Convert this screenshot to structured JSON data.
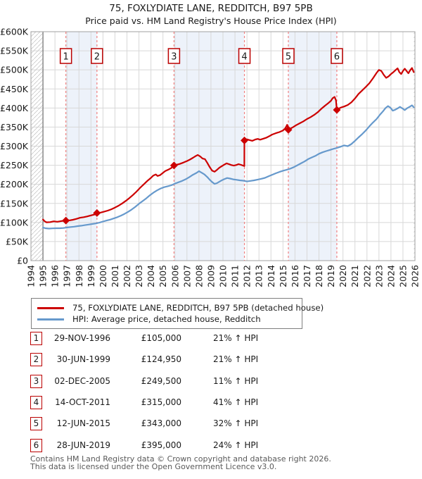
{
  "title": "75, FOXLYDIATE LANE, REDDITCH, B97 5PB",
  "subtitle": "Price paid vs. HM Land Registry's House Price Index (HPI)",
  "colors": {
    "property_line": "#cc0000",
    "hpi_line": "#6699cc",
    "sale_dashed_line": "#f08080",
    "marker_box_border": "#bb0000",
    "ownership_band": "#edf2fa",
    "gridline": "#d8d8d8",
    "plot_border": "#a0a0a0",
    "data_start_line": "#555555",
    "hatch": "#c8c8c8",
    "text": "#1a1a1a",
    "footer_text": "#595959"
  },
  "chart_data": {
    "type": "line",
    "title": "75, FOXLYDIATE LANE, REDDITCH, B97 5PB",
    "xlabel": "",
    "ylabel": "",
    "x_range": [
      1994,
      2026
    ],
    "y_range_thousands": [
      0,
      600
    ],
    "grid": true,
    "x_ticks": [
      1994,
      1995,
      1996,
      1997,
      1998,
      1999,
      2000,
      2001,
      2002,
      2003,
      2004,
      2005,
      2006,
      2007,
      2008,
      2009,
      2010,
      2011,
      2012,
      2013,
      2014,
      2015,
      2016,
      2017,
      2018,
      2019,
      2020,
      2021,
      2022,
      2023,
      2024,
      2025,
      2026
    ],
    "y_ticks_thousands": [
      0,
      50,
      100,
      150,
      200,
      250,
      300,
      350,
      400,
      450,
      500,
      550,
      600
    ],
    "y_tick_labels": [
      "£0",
      "£50K",
      "£100K",
      "£150K",
      "£200K",
      "£250K",
      "£300K",
      "£350K",
      "£400K",
      "£450K",
      "£500K",
      "£550K",
      "£600K"
    ],
    "ownership_bands": [
      [
        1996.91,
        1999.5
      ],
      [
        2005.92,
        2011.79
      ],
      [
        2015.45,
        2019.49
      ]
    ],
    "no_data_hatch": [
      [
        1994,
        1995
      ],
      [
        2025.9,
        2026
      ]
    ],
    "series": [
      {
        "name": "75, FOXLYDIATE LANE, REDDITCH, B97 5PB (detached house)",
        "color": "#cc0000",
        "points": [
          [
            1995.0,
            108
          ],
          [
            1995.15,
            103
          ],
          [
            1995.3,
            100.5
          ],
          [
            1995.6,
            101
          ],
          [
            1995.9,
            103
          ],
          [
            1996.2,
            102
          ],
          [
            1996.5,
            103.5
          ],
          [
            1996.91,
            105
          ],
          [
            1997.2,
            105.5
          ],
          [
            1997.5,
            107
          ],
          [
            1997.8,
            109.5
          ],
          [
            1998.1,
            112.5
          ],
          [
            1998.4,
            114
          ],
          [
            1998.7,
            116
          ],
          [
            1999.0,
            118.5
          ],
          [
            1999.3,
            121
          ],
          [
            1999.5,
            124.95
          ],
          [
            1999.8,
            126
          ],
          [
            2000.1,
            128.5
          ],
          [
            2000.4,
            131
          ],
          [
            2000.7,
            134.5
          ],
          [
            2001.0,
            139
          ],
          [
            2001.3,
            144
          ],
          [
            2001.6,
            150
          ],
          [
            2001.9,
            156.5
          ],
          [
            2002.2,
            164
          ],
          [
            2002.5,
            172
          ],
          [
            2002.8,
            181
          ],
          [
            2003.1,
            191
          ],
          [
            2003.4,
            200
          ],
          [
            2003.7,
            209
          ],
          [
            2004.0,
            217
          ],
          [
            2004.2,
            223
          ],
          [
            2004.4,
            226
          ],
          [
            2004.55,
            222
          ],
          [
            2004.75,
            224
          ],
          [
            2005.0,
            230
          ],
          [
            2005.2,
            235
          ],
          [
            2005.45,
            238.5
          ],
          [
            2005.7,
            243
          ],
          [
            2005.92,
            249.5
          ],
          [
            2006.1,
            251
          ],
          [
            2006.4,
            253.5
          ],
          [
            2006.7,
            257
          ],
          [
            2007.0,
            261
          ],
          [
            2007.25,
            265
          ],
          [
            2007.5,
            269.5
          ],
          [
            2007.75,
            274.5
          ],
          [
            2007.9,
            277
          ],
          [
            2008.1,
            273
          ],
          [
            2008.3,
            267.5
          ],
          [
            2008.5,
            266
          ],
          [
            2008.7,
            256
          ],
          [
            2008.9,
            245
          ],
          [
            2009.1,
            236
          ],
          [
            2009.3,
            233
          ],
          [
            2009.5,
            238
          ],
          [
            2009.7,
            243.5
          ],
          [
            2009.9,
            247.5
          ],
          [
            2010.1,
            251.5
          ],
          [
            2010.3,
            255
          ],
          [
            2010.5,
            253
          ],
          [
            2010.7,
            250.5
          ],
          [
            2010.9,
            249
          ],
          [
            2011.1,
            250.5
          ],
          [
            2011.3,
            253
          ],
          [
            2011.5,
            251
          ],
          [
            2011.78,
            248
          ],
          [
            2011.79,
            315
          ],
          [
            2012.0,
            318
          ],
          [
            2012.2,
            316
          ],
          [
            2012.45,
            314
          ],
          [
            2012.7,
            317.5
          ],
          [
            2012.9,
            319
          ],
          [
            2013.1,
            317
          ],
          [
            2013.35,
            319.5
          ],
          [
            2013.6,
            322
          ],
          [
            2013.85,
            326
          ],
          [
            2014.1,
            330.5
          ],
          [
            2014.4,
            334
          ],
          [
            2014.7,
            337
          ],
          [
            2015.0,
            341
          ],
          [
            2015.2,
            347
          ],
          [
            2015.35,
            356
          ],
          [
            2015.45,
            343
          ],
          [
            2015.65,
            346.5
          ],
          [
            2015.85,
            350
          ],
          [
            2016.1,
            355
          ],
          [
            2016.4,
            360
          ],
          [
            2016.7,
            365
          ],
          [
            2017.0,
            371
          ],
          [
            2017.3,
            376
          ],
          [
            2017.6,
            382
          ],
          [
            2017.9,
            389
          ],
          [
            2018.2,
            398
          ],
          [
            2018.5,
            406
          ],
          [
            2018.75,
            412
          ],
          [
            2019.0,
            419
          ],
          [
            2019.15,
            426
          ],
          [
            2019.3,
            429
          ],
          [
            2019.42,
            420
          ],
          [
            2019.49,
            395
          ],
          [
            2019.65,
            398.5
          ],
          [
            2019.85,
            401.5
          ],
          [
            2020.1,
            404
          ],
          [
            2020.4,
            408
          ],
          [
            2020.7,
            415
          ],
          [
            2021.0,
            425
          ],
          [
            2021.3,
            437
          ],
          [
            2021.6,
            446
          ],
          [
            2021.9,
            455
          ],
          [
            2022.2,
            465
          ],
          [
            2022.5,
            478
          ],
          [
            2022.8,
            492
          ],
          [
            2023.0,
            500
          ],
          [
            2023.2,
            497
          ],
          [
            2023.4,
            487
          ],
          [
            2023.6,
            479
          ],
          [
            2023.8,
            483
          ],
          [
            2024.0,
            489
          ],
          [
            2024.2,
            494
          ],
          [
            2024.4,
            500
          ],
          [
            2024.55,
            504
          ],
          [
            2024.7,
            494
          ],
          [
            2024.85,
            489
          ],
          [
            2025.0,
            497
          ],
          [
            2025.15,
            503
          ],
          [
            2025.3,
            497
          ],
          [
            2025.45,
            491
          ],
          [
            2025.6,
            499
          ],
          [
            2025.75,
            505
          ],
          [
            2025.9,
            494
          ]
        ]
      },
      {
        "name": "HPI: Average price, detached house, Redditch",
        "color": "#6699cc",
        "points": [
          [
            1995.0,
            87
          ],
          [
            1995.2,
            85
          ],
          [
            1995.5,
            84
          ],
          [
            1995.8,
            84.5
          ],
          [
            1996.1,
            85
          ],
          [
            1996.4,
            85
          ],
          [
            1996.7,
            85.5
          ],
          [
            1997.0,
            87
          ],
          [
            1997.3,
            88
          ],
          [
            1997.6,
            89
          ],
          [
            1997.9,
            90.5
          ],
          [
            1998.2,
            91.5
          ],
          [
            1998.5,
            93
          ],
          [
            1998.8,
            94.5
          ],
          [
            1999.1,
            96
          ],
          [
            1999.4,
            97.5
          ],
          [
            1999.7,
            99.5
          ],
          [
            2000.0,
            102.5
          ],
          [
            2000.3,
            105
          ],
          [
            2000.6,
            107.5
          ],
          [
            2000.9,
            110.5
          ],
          [
            2001.2,
            114
          ],
          [
            2001.5,
            118
          ],
          [
            2001.8,
            122.5
          ],
          [
            2002.1,
            128
          ],
          [
            2002.4,
            134
          ],
          [
            2002.7,
            141
          ],
          [
            2003.0,
            149
          ],
          [
            2003.3,
            156
          ],
          [
            2003.6,
            163
          ],
          [
            2003.9,
            171
          ],
          [
            2004.2,
            178
          ],
          [
            2004.5,
            184
          ],
          [
            2004.8,
            189
          ],
          [
            2005.1,
            192.5
          ],
          [
            2005.4,
            195
          ],
          [
            2005.7,
            197.5
          ],
          [
            2006.0,
            202
          ],
          [
            2006.3,
            205.5
          ],
          [
            2006.6,
            209
          ],
          [
            2006.9,
            213.5
          ],
          [
            2007.2,
            219
          ],
          [
            2007.5,
            225
          ],
          [
            2007.8,
            230
          ],
          [
            2008.0,
            234.5
          ],
          [
            2008.2,
            231
          ],
          [
            2008.45,
            226
          ],
          [
            2008.7,
            219
          ],
          [
            2008.9,
            212
          ],
          [
            2009.1,
            206
          ],
          [
            2009.3,
            201
          ],
          [
            2009.5,
            203
          ],
          [
            2009.7,
            207
          ],
          [
            2009.9,
            210.5
          ],
          [
            2010.1,
            213.5
          ],
          [
            2010.35,
            216.5
          ],
          [
            2010.6,
            215
          ],
          [
            2010.85,
            213
          ],
          [
            2011.1,
            212
          ],
          [
            2011.4,
            210.5
          ],
          [
            2011.7,
            209.5
          ],
          [
            2012.0,
            207.5
          ],
          [
            2012.3,
            209
          ],
          [
            2012.6,
            210.5
          ],
          [
            2012.9,
            212.5
          ],
          [
            2013.2,
            214.5
          ],
          [
            2013.5,
            217
          ],
          [
            2013.8,
            221
          ],
          [
            2014.1,
            225
          ],
          [
            2014.4,
            229
          ],
          [
            2014.7,
            232.5
          ],
          [
            2015.0,
            235.5
          ],
          [
            2015.3,
            238
          ],
          [
            2015.6,
            241
          ],
          [
            2015.9,
            245
          ],
          [
            2016.2,
            250
          ],
          [
            2016.5,
            255
          ],
          [
            2016.8,
            260
          ],
          [
            2017.1,
            266
          ],
          [
            2017.4,
            270.5
          ],
          [
            2017.7,
            274.5
          ],
          [
            2018.0,
            280
          ],
          [
            2018.3,
            284
          ],
          [
            2018.6,
            287
          ],
          [
            2018.9,
            290
          ],
          [
            2019.2,
            293
          ],
          [
            2019.5,
            295.5
          ],
          [
            2019.8,
            298.5
          ],
          [
            2020.1,
            302
          ],
          [
            2020.4,
            300
          ],
          [
            2020.7,
            305.5
          ],
          [
            2021.0,
            314
          ],
          [
            2021.3,
            323
          ],
          [
            2021.6,
            331.5
          ],
          [
            2021.9,
            341
          ],
          [
            2022.2,
            352
          ],
          [
            2022.5,
            362
          ],
          [
            2022.8,
            371
          ],
          [
            2023.1,
            383
          ],
          [
            2023.35,
            392
          ],
          [
            2023.55,
            400
          ],
          [
            2023.75,
            405
          ],
          [
            2023.95,
            401
          ],
          [
            2024.15,
            393
          ],
          [
            2024.35,
            395.5
          ],
          [
            2024.55,
            399
          ],
          [
            2024.75,
            403
          ],
          [
            2024.95,
            399
          ],
          [
            2025.15,
            394.5
          ],
          [
            2025.35,
            399.5
          ],
          [
            2025.55,
            403
          ],
          [
            2025.75,
            407
          ],
          [
            2025.9,
            402
          ]
        ]
      }
    ],
    "sale_markers": [
      {
        "num": "1",
        "year": 1996.91,
        "value": 105,
        "date": "29-NOV-1996",
        "price": "£105,000",
        "hpi_change": "21% ↑ HPI"
      },
      {
        "num": "2",
        "year": 1999.5,
        "value": 124.95,
        "date": "30-JUN-1999",
        "price": "£124,950",
        "hpi_change": "21% ↑ HPI"
      },
      {
        "num": "3",
        "year": 2005.92,
        "value": 249.5,
        "date": "02-DEC-2005",
        "price": "£249,500",
        "hpi_change": "11% ↑ HPI"
      },
      {
        "num": "4",
        "year": 2011.79,
        "value": 315,
        "date": "14-OCT-2011",
        "price": "£315,000",
        "hpi_change": "41% ↑ HPI"
      },
      {
        "num": "5",
        "year": 2015.45,
        "value": 343,
        "date": "12-JUN-2015",
        "price": "£343,000",
        "hpi_change": "32% ↑ HPI"
      },
      {
        "num": "6",
        "year": 2019.49,
        "value": 395,
        "date": "28-JUN-2019",
        "price": "£395,000",
        "hpi_change": "24% ↑ HPI"
      }
    ]
  },
  "legend": {
    "items": [
      {
        "label": "75, FOXLYDIATE LANE, REDDITCH, B97 5PB (detached house)",
        "color": "#cc0000"
      },
      {
        "label": "HPI: Average price, detached house, Redditch",
        "color": "#6699cc"
      }
    ]
  },
  "footer": {
    "line1": "Contains HM Land Registry data © Crown copyright and database right 2026.",
    "line2": "This data is licensed under the Open Government Licence v3.0."
  }
}
